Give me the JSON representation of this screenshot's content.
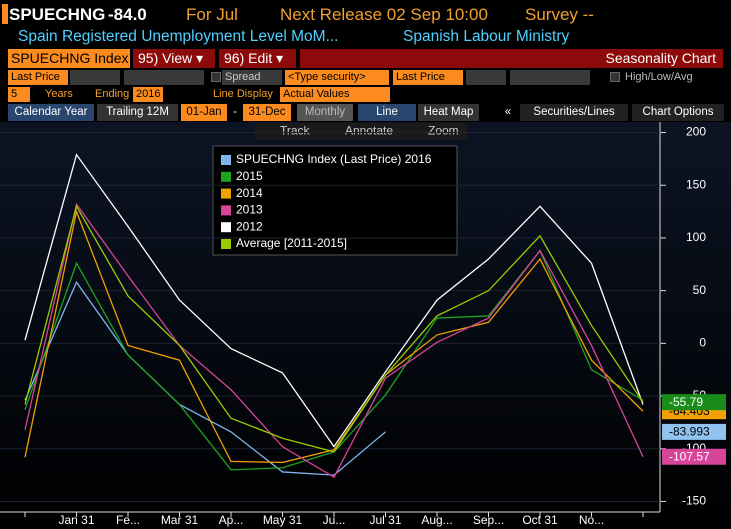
{
  "header": {
    "ticker": "SPUECHNG",
    "last": "-84.0",
    "period": "For Jul",
    "release": "Next Release 02 Sep 10:00",
    "survey": "Survey --",
    "description": "Spain Registered Unemployment Level MoM...",
    "source": "Spanish Labour Ministry"
  },
  "toolbar": {
    "security": "SPUECHNG Index",
    "view": "95) View ▾",
    "edit": "96) Edit ▾",
    "chart_name": "Seasonality Chart"
  },
  "settings": {
    "field1": "Last Price",
    "spread": "Spread",
    "security2": "<Type security>",
    "field2": "Last Price",
    "hla": "High/Low/Avg",
    "years": "5",
    "years_label": "Years",
    "ending_label": "Ending",
    "ending": "2016",
    "line_display_label": "Line Display",
    "line_display": "Actual Values"
  },
  "tabs": {
    "calendar": "Calendar Year",
    "trailing": "Trailing 12M",
    "start": "01-Jan",
    "dash": "-",
    "end": "31-Dec",
    "frequency": "Monthly",
    "line": "Line",
    "heatmap": "Heat Map",
    "collapse": "«",
    "securities": "Securities/Lines",
    "options": "Chart Options"
  },
  "chart_tools": [
    "Track",
    "Annotate",
    "Zoom"
  ],
  "chart_data": {
    "type": "line",
    "categories": [
      null,
      "Jan 31",
      "Fe...",
      "Mar 31",
      "Ap...",
      "May 31",
      "Ju...",
      "Jul 31",
      "Aug...",
      "Sep...",
      "Oct 31",
      "No...",
      null
    ],
    "series": [
      {
        "name": "SPUECHNG Index (Last Price) 2016",
        "color": "#7fb5ea",
        "values": [
          -54,
          58,
          -11,
          -58,
          -84,
          -122,
          -125,
          -83.993,
          null,
          null,
          null,
          null,
          null
        ]
      },
      {
        "name": "2015",
        "color": "#1fa31f",
        "values": [
          -63,
          76,
          -11,
          -58,
          -120,
          -118,
          -103,
          -49,
          24,
          26,
          88,
          -25,
          -54
        ]
      },
      {
        "name": "2014",
        "color": "#f0a000",
        "values": [
          -108,
          125,
          -2,
          -16,
          -112,
          -113,
          -101,
          -30,
          8,
          20,
          80,
          -16,
          -64.403
        ]
      },
      {
        "name": "2013",
        "color": "#d8449a",
        "values": [
          -82,
          132,
          64,
          -2,
          -44,
          -98,
          -127,
          -33,
          1,
          24,
          88,
          -2,
          -107.57
        ]
      },
      {
        "name": "2012",
        "color": "#ffffff",
        "values": [
          3,
          179,
          111,
          41,
          -5,
          -28,
          -98,
          -27,
          41,
          80,
          130,
          76,
          -58
        ]
      },
      {
        "name": "Average [2011-2015]",
        "color": "#9acd00",
        "values": [
          -58,
          130,
          45,
          -2,
          -71,
          -90,
          -103,
          -30,
          26,
          50,
          102,
          17,
          -55.79
        ]
      }
    ],
    "end_labels": [
      {
        "value": -64.403,
        "label": "-64.403",
        "color": "#f0a000",
        "text_color": "#000000"
      },
      {
        "value": -55.79,
        "label": "-55.79",
        "color": "#1a8c1a",
        "text_color": "#ffffff"
      },
      {
        "value": -83.993,
        "label": "-83.993",
        "color": "#8fc3f0",
        "text_color": "#000000"
      },
      {
        "value": -107.57,
        "label": "-107.57",
        "color": "#d8449a",
        "text_color": "#ffffff"
      }
    ],
    "ylim": [
      -160,
      210
    ],
    "yticks": [
      -150,
      -100,
      -50,
      0,
      50,
      100,
      150,
      200
    ],
    "grid": true
  }
}
